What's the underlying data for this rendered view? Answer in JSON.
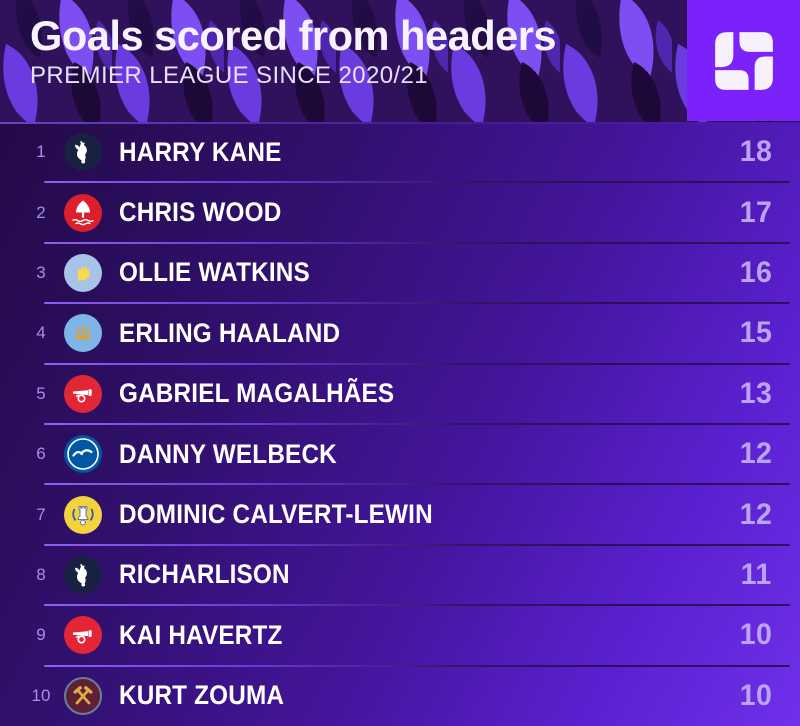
{
  "header": {
    "title": "Goals scored from headers",
    "subtitle": "PREMIER LEAGUE SINCE 2020/21",
    "logo_icon": "squawka-s-icon"
  },
  "chart_data": {
    "type": "table",
    "title": "Goals scored from headers",
    "subtitle": "PREMIER LEAGUE SINCE 2020/21",
    "columns": [
      "rank",
      "club",
      "player",
      "goals"
    ],
    "rows": [
      {
        "rank": 1,
        "club": "tottenham-hotspur",
        "player": "HARRY KANE",
        "goals": 18
      },
      {
        "rank": 2,
        "club": "nottingham-forest",
        "player": "CHRIS WOOD",
        "goals": 17
      },
      {
        "rank": 3,
        "club": "aston-villa",
        "player": "OLLIE WATKINS",
        "goals": 16
      },
      {
        "rank": 4,
        "club": "manchester-city",
        "player": "ERLING HAALAND",
        "goals": 15
      },
      {
        "rank": 5,
        "club": "arsenal",
        "player": "GABRIEL MAGALHÃES",
        "goals": 13
      },
      {
        "rank": 6,
        "club": "brighton",
        "player": "DANNY WELBECK",
        "goals": 12
      },
      {
        "rank": 7,
        "club": "everton",
        "player": "DOMINIC CALVERT-LEWIN",
        "goals": 12
      },
      {
        "rank": 8,
        "club": "tottenham-hotspur",
        "player": "RICHARLISON",
        "goals": 11
      },
      {
        "rank": 9,
        "club": "arsenal",
        "player": "KAI HAVERTZ",
        "goals": 10
      },
      {
        "rank": 10,
        "club": "west-ham-united",
        "player": "KURT ZOUMA",
        "goals": 10
      }
    ]
  },
  "colors": {
    "header_background": "#2c0e52",
    "flame_light": "#7d4ef2",
    "flame_dark": "#1d0938",
    "logo_background": "#7b22fa",
    "logo_glyph": "#f5f0fc",
    "list_gradient_top_left": "#230a47",
    "list_gradient_bottom_right": "#6f30ea",
    "title_text": "#f7f3fe",
    "subtitle_text": "#e9defb",
    "rank_text": "#a78ee9",
    "player_text": "#ffffff",
    "value_text": "#bba4f6",
    "separator_light": "#8f5ff2",
    "separator_dark": "#2a1157"
  }
}
